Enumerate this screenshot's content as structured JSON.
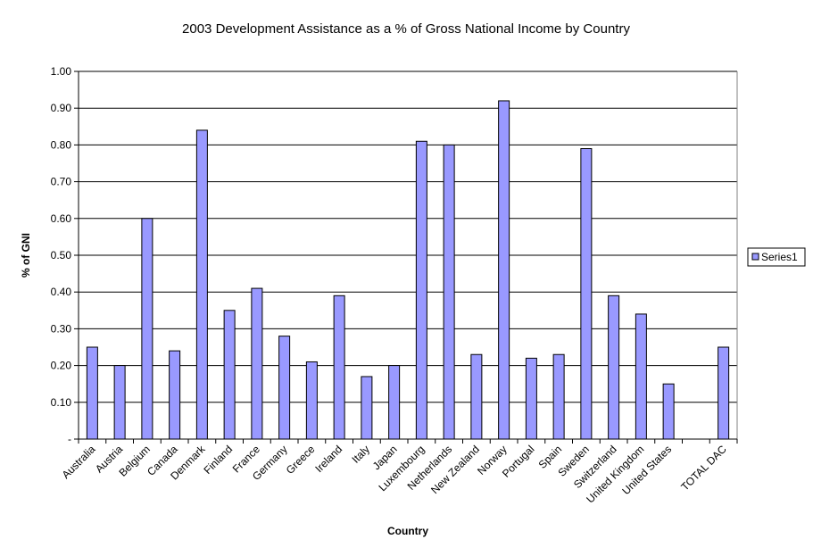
{
  "chart_data": {
    "type": "bar",
    "title": "2003 Development Assistance as a % of Gross National Income by Country",
    "xlabel": "Country",
    "ylabel": "% of GNI",
    "ylim": [
      0,
      1.0
    ],
    "ytick_labels": [
      "-",
      "0.10",
      "0.20",
      "0.30",
      "0.40",
      "0.50",
      "0.60",
      "0.70",
      "0.80",
      "0.90",
      "1.00"
    ],
    "grid": true,
    "legend_position": "right",
    "categories": [
      "Australia",
      "Austria",
      "Belgium",
      "Canada",
      "Denmark",
      "Finland",
      "France",
      "Germany",
      "Greece",
      "Ireland",
      "Italy",
      "Japan",
      "Luxembourg",
      "Netherlands",
      "New Zealand",
      "Norway",
      "Portugal",
      "Spain",
      "Sweden",
      "Switzerland",
      "United Kingdom",
      "United States",
      "",
      "TOTAL DAC"
    ],
    "series": [
      {
        "name": "Series1",
        "color": "#9999ff",
        "values": [
          0.25,
          0.2,
          0.6,
          0.24,
          0.84,
          0.35,
          0.41,
          0.28,
          0.21,
          0.39,
          0.17,
          0.2,
          0.81,
          0.8,
          0.23,
          0.92,
          0.22,
          0.23,
          0.79,
          0.39,
          0.34,
          0.15,
          null,
          0.25
        ]
      }
    ]
  }
}
